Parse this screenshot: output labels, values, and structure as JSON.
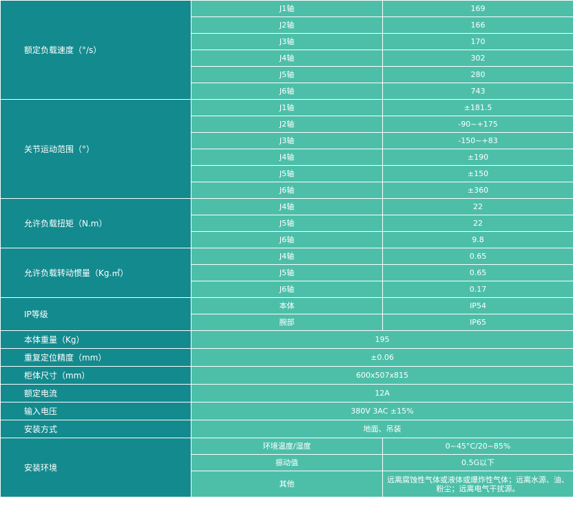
{
  "groups": [
    {
      "label": "额定负载速度（°/s）",
      "rows": [
        {
          "sub": "J1轴",
          "value": "169"
        },
        {
          "sub": "J2轴",
          "value": "166"
        },
        {
          "sub": "J3轴",
          "value": "170"
        },
        {
          "sub": "J4轴",
          "value": "302"
        },
        {
          "sub": "J5轴",
          "value": "280"
        },
        {
          "sub": "J6轴",
          "value": "743"
        }
      ]
    },
    {
      "label": "关节运动范围（°）",
      "rows": [
        {
          "sub": "J1轴",
          "value": "±181.5"
        },
        {
          "sub": "J2轴",
          "value": "-90~+175"
        },
        {
          "sub": "J3轴",
          "value": "-150~+83"
        },
        {
          "sub": "J4轴",
          "value": "±190"
        },
        {
          "sub": "J5轴",
          "value": "±150"
        },
        {
          "sub": "J6轴",
          "value": "±360"
        }
      ]
    },
    {
      "label": "允许负载扭矩（N.m）",
      "rows": [
        {
          "sub": "J4轴",
          "value": "22"
        },
        {
          "sub": "J5轴",
          "value": "22"
        },
        {
          "sub": "J6轴",
          "value": "9.8"
        }
      ]
    },
    {
      "label": "允许负载转动惯量（Kg.㎡）",
      "rows": [
        {
          "sub": "J4轴",
          "value": "0.65"
        },
        {
          "sub": "J5轴",
          "value": "0.65"
        },
        {
          "sub": "J6轴",
          "value": "0.17"
        }
      ]
    },
    {
      "label": "IP等级",
      "rows": [
        {
          "sub": "本体",
          "value": "IP54"
        },
        {
          "sub": "腕部",
          "value": "IP65"
        }
      ]
    }
  ],
  "singles": [
    {
      "label": "本体重量（Kg）",
      "value": "195"
    },
    {
      "label": "重复定位精度（mm）",
      "value": "±0.06"
    },
    {
      "label": "柜体尺寸（mm）",
      "value": "600x507x815"
    },
    {
      "label": "额定电流",
      "value": "12A"
    },
    {
      "label": "输入电压",
      "value": "380V 3AC ±15%"
    },
    {
      "label": "安装方式",
      "value": "地面、吊装"
    }
  ],
  "environment": {
    "label": "安装环境",
    "rows": [
      {
        "sub": "环境温度/湿度",
        "value": "0~45°C/20~85%"
      },
      {
        "sub": "振动值",
        "value": "0.5G以下"
      },
      {
        "sub": "其他",
        "value": "远离腐蚀性气体或液体或爆炸性气体；远离水源、油、粉尘；远离电气干扰源。"
      }
    ]
  }
}
